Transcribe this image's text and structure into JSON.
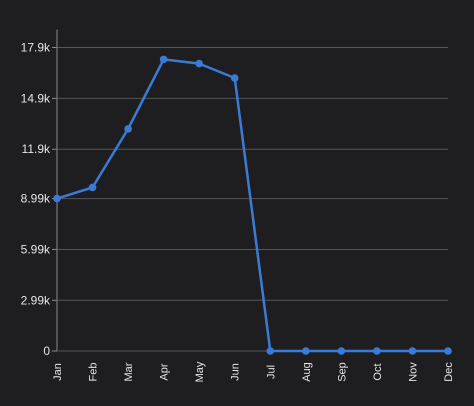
{
  "chart_data": {
    "type": "line",
    "title": "",
    "xlabel": "",
    "ylabel": "",
    "categories": [
      "Jan",
      "Feb",
      "Mar",
      "Apr",
      "May",
      "Jun",
      "Jul",
      "Aug",
      "Sep",
      "Oct",
      "Nov",
      "Dec"
    ],
    "series": [
      {
        "values": [
          8990,
          9650,
          13100,
          17200,
          16950,
          16100,
          0,
          0,
          0,
          0,
          0,
          0
        ],
        "color": "#3a7bd5"
      }
    ],
    "y_ticks": [
      0,
      2990,
      5990,
      8990,
      11900,
      14900,
      17900
    ],
    "y_tick_labels": [
      "0",
      "2.99k",
      "5.99k",
      "8.99k",
      "11.9k",
      "14.9k",
      "17.9k"
    ],
    "ylim": [
      0,
      17900
    ],
    "grid": true,
    "legend": "none",
    "colors": {
      "background": "#1e1e20",
      "grid": "#56565a",
      "text": "#e6e6e6",
      "line": "#3a7bd5"
    }
  }
}
